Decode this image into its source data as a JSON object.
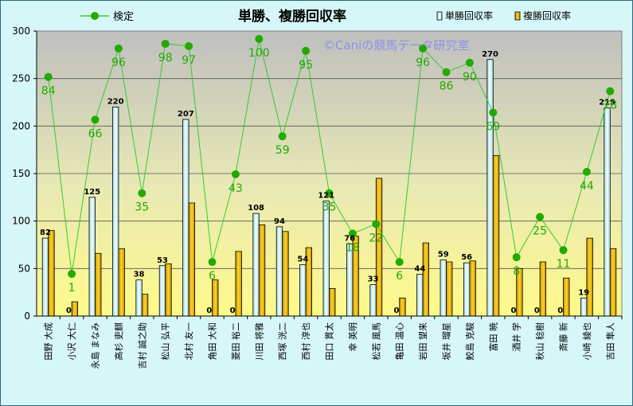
{
  "chart_data": {
    "type": "bar",
    "title": "単勝、複勝回収率",
    "watermark": "©Caniの競馬データ研究室",
    "ylim": [
      0,
      300
    ],
    "yticks": [
      0,
      50,
      100,
      150,
      200,
      250,
      300
    ],
    "ytick_labels": [
      "0",
      "50",
      "100",
      "150",
      "200",
      "250",
      "300"
    ],
    "categories": [
      "田野 大成",
      "小沢 大仁",
      "永島 まなみ",
      "高杉 吏麒",
      "吉村 誠之助",
      "松山 弘平",
      "北村 友一",
      "角田 大和",
      "菱田 裕二",
      "川田 将雅",
      "西塚 洸二",
      "西村 淳也",
      "田口 貫太",
      "幸 英明",
      "松若 風馬",
      "亀田 温心",
      "岩田 望来",
      "坂井 瑠星",
      "鮫島 克駿",
      "富田 暁",
      "酒井 学",
      "秋山 稔樹",
      "斎藤 新",
      "小崎 綾也",
      "吉田 隼人"
    ],
    "series": [
      {
        "name": "単勝回収率",
        "color": "#d8f4f8",
        "values": [
          82,
          0,
          125,
          220,
          38,
          53,
          207,
          0,
          0,
          108,
          94,
          54,
          121,
          76,
          33,
          0,
          44,
          59,
          56,
          270,
          0,
          0,
          0,
          19,
          219
        ],
        "labels": [
          "82",
          "0",
          "125",
          "220",
          "38",
          "53",
          "207",
          "0",
          "0",
          "108",
          "94",
          "54",
          "121",
          "76",
          "33",
          "0",
          "44",
          "59",
          "56",
          "270",
          "0",
          "0",
          "0",
          "19",
          "219"
        ]
      },
      {
        "name": "複勝回収率",
        "color": "#f0b800",
        "values": [
          90,
          15,
          66,
          71,
          23,
          55,
          119,
          38,
          68,
          96,
          89,
          72,
          29,
          84,
          145,
          19,
          77,
          57,
          58,
          169,
          50,
          57,
          40,
          82,
          71
        ]
      },
      {
        "name": "検定",
        "color": "#33cc33",
        "values": [
          84,
          1,
          66,
          96,
          35,
          98,
          97,
          6,
          43,
          100,
          59,
          95,
          35,
          18,
          22,
          6,
          96,
          86,
          90,
          69,
          8,
          25,
          11,
          44,
          78
        ],
        "labels": [
          "84",
          "1",
          "66",
          "96",
          "35",
          "98",
          "97",
          "6",
          "43",
          "100",
          "59",
          "95",
          "35",
          "18",
          "22",
          "6",
          "96",
          "86",
          "90",
          "69",
          "8",
          "25",
          "11",
          "44",
          "78"
        ],
        "range": [
          0,
          100
        ]
      }
    ],
    "legend": "top"
  }
}
